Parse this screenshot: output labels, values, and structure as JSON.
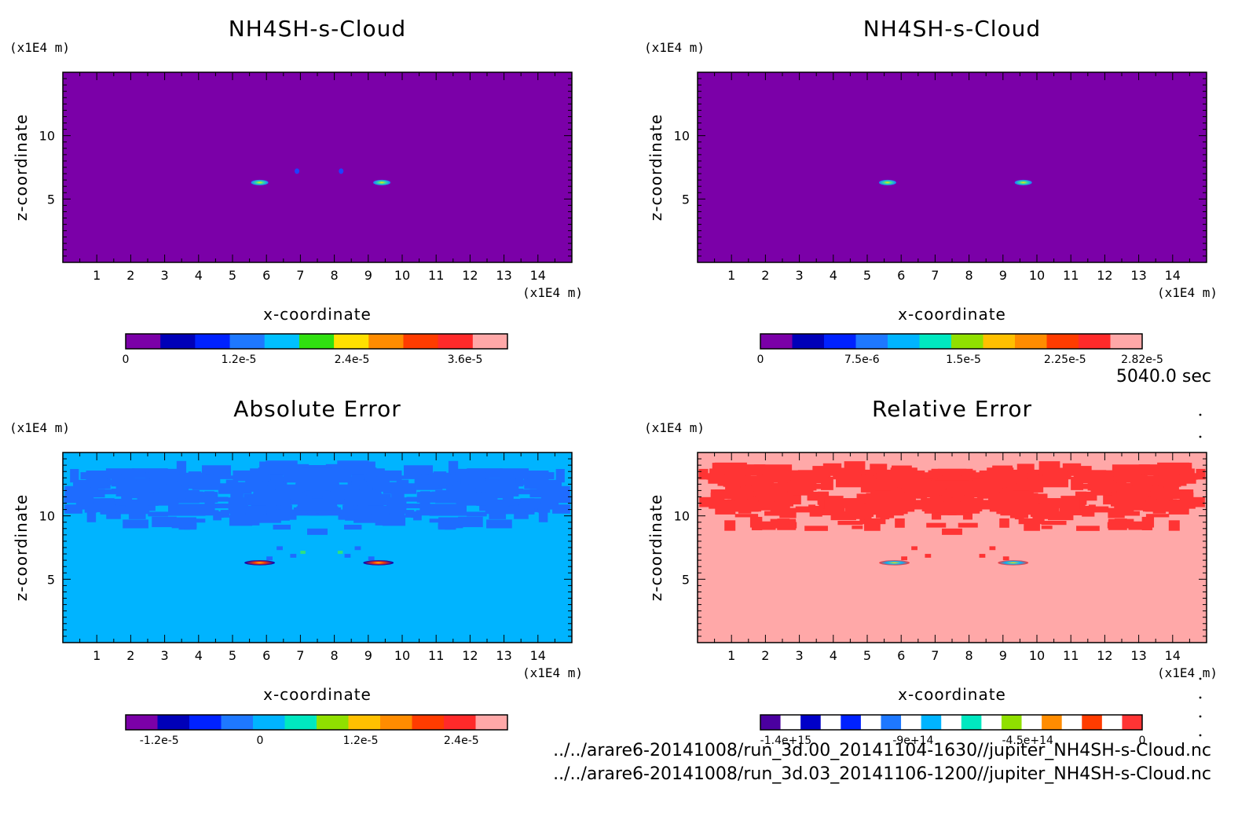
{
  "footer": {
    "time_label": "5040.0 sec",
    "file_1": "../../arare6-20141008/run_3d.00_20141104-1630//jupiter_NH4SH-s-Cloud.nc",
    "file_2": "../../arare6-20141008/run_3d.03_20141106-1200//jupiter_NH4SH-s-Cloud.nc"
  },
  "chart_data": [
    {
      "type": "heatmap",
      "title": "NH4SH-s-Cloud",
      "xlabel": "x-coordinate",
      "ylabel": "z-coordinate",
      "x_unit": "(x1E4 m)",
      "y_unit": "(x1E4 m)",
      "xlim": [
        0,
        15
      ],
      "ylim": [
        0,
        15
      ],
      "x_ticks": [
        1,
        2,
        3,
        4,
        5,
        6,
        7,
        8,
        9,
        10,
        11,
        12,
        13,
        14
      ],
      "y_ticks": [
        5,
        10
      ],
      "background_color": "#7b00a8",
      "colorbar": {
        "colors": [
          "#7b00a8",
          "#0000b8",
          "#0022ff",
          "#1e78ff",
          "#00c0ff",
          "#30e010",
          "#ffe000",
          "#ff8c00",
          "#ff3c00",
          "#ff2a2a",
          "#ffa8a8"
        ],
        "tick_labels": [
          "0",
          "1.2e-5",
          "2.4e-5",
          "3.6e-5"
        ],
        "tick_values": [
          0,
          1.2e-05,
          2.4e-05,
          3.6e-05
        ],
        "range": [
          0,
          4.05e-05
        ]
      },
      "features": [
        {
          "x": 5.8,
          "z": 6.3,
          "kind": "blob"
        },
        {
          "x": 9.4,
          "z": 6.3,
          "kind": "blob"
        },
        {
          "x": 6.9,
          "z": 7.2,
          "kind": "speck"
        },
        {
          "x": 8.2,
          "z": 7.2,
          "kind": "speck"
        }
      ]
    },
    {
      "type": "heatmap",
      "title": "NH4SH-s-Cloud",
      "xlabel": "x-coordinate",
      "ylabel": "z-coordinate",
      "x_unit": "(x1E4 m)",
      "y_unit": "(x1E4 m)",
      "xlim": [
        0,
        15
      ],
      "ylim": [
        0,
        15
      ],
      "x_ticks": [
        1,
        2,
        3,
        4,
        5,
        6,
        7,
        8,
        9,
        10,
        11,
        12,
        13,
        14
      ],
      "y_ticks": [
        5,
        10
      ],
      "background_color": "#7b00a8",
      "colorbar": {
        "colors": [
          "#7b00a8",
          "#0000b8",
          "#0022ff",
          "#1e78ff",
          "#00b4ff",
          "#00e8c0",
          "#90e000",
          "#ffc000",
          "#ff8c00",
          "#ff3c00",
          "#ff2a2a",
          "#ffa8a8"
        ],
        "tick_labels": [
          "0",
          "7.5e-6",
          "1.5e-5",
          "2.25e-5",
          "2.82e-5"
        ],
        "tick_values": [
          0,
          7.5e-06,
          1.5e-05,
          2.25e-05,
          2.82e-05
        ],
        "range": [
          0,
          2.82e-05
        ]
      },
      "features": [
        {
          "x": 5.6,
          "z": 6.3,
          "kind": "blob"
        },
        {
          "x": 9.6,
          "z": 6.3,
          "kind": "blob"
        }
      ]
    },
    {
      "type": "heatmap",
      "title": "Absolute Error",
      "xlabel": "x-coordinate",
      "ylabel": "z-coordinate",
      "x_unit": "(x1E4 m)",
      "y_unit": "(x1E4 m)",
      "xlim": [
        0,
        15
      ],
      "ylim": [
        0,
        15
      ],
      "x_ticks": [
        1,
        2,
        3,
        4,
        5,
        6,
        7,
        8,
        9,
        10,
        11,
        12,
        13,
        14
      ],
      "y_ticks": [
        5,
        10
      ],
      "background_color": "#00b4ff",
      "pattern_color": "#1e6cff",
      "colorbar": {
        "colors": [
          "#7b00a8",
          "#0000b8",
          "#0022ff",
          "#1e78ff",
          "#00b4ff",
          "#00e8c0",
          "#90e000",
          "#ffc000",
          "#ff8c00",
          "#ff3c00",
          "#ff2a2a",
          "#ffa8a8"
        ],
        "tick_labels": [
          "-1.2e-5",
          "0",
          "1.2e-5",
          "2.4e-5"
        ],
        "tick_values": [
          -1.2e-05,
          0,
          1.2e-05,
          2.4e-05
        ],
        "range": [
          -1.6e-05,
          2.95e-05
        ]
      }
    },
    {
      "type": "heatmap",
      "title": "Relative Error",
      "xlabel": "x-coordinate",
      "ylabel": "z-coordinate",
      "x_unit": "(x1E4 m)",
      "y_unit": "(x1E4 m)",
      "xlim": [
        0,
        15
      ],
      "ylim": [
        0,
        15
      ],
      "x_ticks": [
        1,
        2,
        3,
        4,
        5,
        6,
        7,
        8,
        9,
        10,
        11,
        12,
        13,
        14
      ],
      "y_ticks": [
        5,
        10
      ],
      "background_color": "#ffa8a8",
      "pattern_color": "#ff3434",
      "colorbar": {
        "colors": [
          "#4b00a0",
          "#ffffff",
          "#0000c8",
          "#ffffff",
          "#0022ff",
          "#ffffff",
          "#1e78ff",
          "#ffffff",
          "#00b4ff",
          "#ffffff",
          "#00e8c0",
          "#ffffff",
          "#90e000",
          "#ffffff",
          "#ff8c00",
          "#ffffff",
          "#ff3c00",
          "#ffffff",
          "#ff3434"
        ],
        "tick_labels": [
          "-1.4e+15",
          "-9e+14",
          "-4.5e+14",
          "0"
        ],
        "tick_values": [
          -1400000000000000.0,
          -900000000000000.0,
          -450000000000000.0,
          0
        ],
        "range": [
          -1500000000000000.0,
          0
        ]
      }
    }
  ]
}
